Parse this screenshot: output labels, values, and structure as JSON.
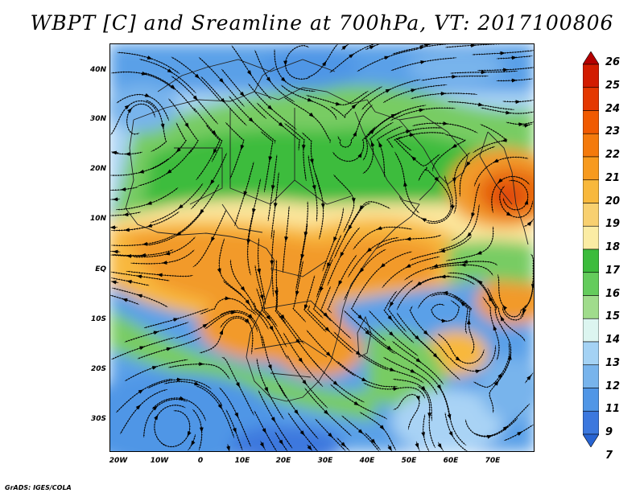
{
  "title": "WBPT [C] and Sreamline at 700hPa, VT: 2017100806",
  "credit": "GrADS: IGES/COLA",
  "lat_labels": [
    "40N",
    "30N",
    "20N",
    "10N",
    "EQ",
    "10S",
    "20S",
    "30S"
  ],
  "lon_labels": [
    "20W",
    "10W",
    "0",
    "10E",
    "20E",
    "30E",
    "40E",
    "50E",
    "60E",
    "70E"
  ],
  "colorbar": {
    "levels": [
      "26",
      "25",
      "24",
      "23",
      "22",
      "21",
      "20",
      "19",
      "18",
      "17",
      "16",
      "15",
      "14",
      "13",
      "12",
      "11",
      "9",
      "7"
    ],
    "colors": [
      "#b40000",
      "#d21c00",
      "#e43800",
      "#f05a00",
      "#f47a0c",
      "#f79a1e",
      "#f8b83c",
      "#f8d070",
      "#fbeca4",
      "#3cbc3c",
      "#64cc5c",
      "#a0dc8c",
      "#dcf5f0",
      "#a4d2f4",
      "#78b4ec",
      "#5096e6",
      "#3c78de",
      "#2864d2"
    ]
  },
  "map_colors": {
    "ocean_cool": "#5aa0e8",
    "ocean_deep": "#2f6fd6",
    "light_blue": "#a9d3f5",
    "pale": "#dcf5f0",
    "green": "#3cbc3c",
    "green_light": "#78cc64",
    "yellow": "#fbe69c",
    "tan": "#f8c870",
    "orange": "#f29a2c",
    "orange_deep": "#e86a10",
    "red": "#e04a08",
    "coast": "#222222",
    "stream": "#000000"
  }
}
